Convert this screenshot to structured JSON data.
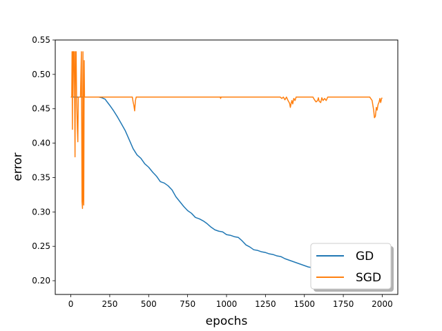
{
  "chart_data": {
    "type": "line",
    "title": "",
    "xlabel": "epochs",
    "ylabel": "error",
    "xlim": [
      -100,
      2100
    ],
    "ylim": [
      0.18,
      0.55
    ],
    "x_ticks": [
      0,
      250,
      500,
      750,
      1000,
      1250,
      1500,
      1750,
      2000
    ],
    "y_ticks": [
      0.2,
      0.25,
      0.3,
      0.35,
      0.4,
      0.45,
      0.5,
      0.55
    ],
    "grid": false,
    "legend": {
      "position": "lower-right",
      "entries": [
        "GD",
        "SGD"
      ]
    },
    "series": [
      {
        "name": "GD",
        "color": "#1f77b4",
        "points": [
          [
            0,
            0.467
          ],
          [
            180,
            0.467
          ],
          [
            200,
            0.466
          ],
          [
            220,
            0.464
          ],
          [
            250,
            0.455
          ],
          [
            275,
            0.447
          ],
          [
            300,
            0.438
          ],
          [
            325,
            0.428
          ],
          [
            350,
            0.418
          ],
          [
            375,
            0.405
          ],
          [
            400,
            0.392
          ],
          [
            425,
            0.383
          ],
          [
            450,
            0.378
          ],
          [
            475,
            0.37
          ],
          [
            500,
            0.365
          ],
          [
            525,
            0.358
          ],
          [
            550,
            0.352
          ],
          [
            575,
            0.344
          ],
          [
            600,
            0.342
          ],
          [
            625,
            0.338
          ],
          [
            650,
            0.332
          ],
          [
            675,
            0.322
          ],
          [
            700,
            0.315
          ],
          [
            725,
            0.308
          ],
          [
            750,
            0.302
          ],
          [
            775,
            0.298
          ],
          [
            800,
            0.292
          ],
          [
            825,
            0.29
          ],
          [
            850,
            0.287
          ],
          [
            875,
            0.283
          ],
          [
            900,
            0.278
          ],
          [
            925,
            0.274
          ],
          [
            950,
            0.272
          ],
          [
            975,
            0.271
          ],
          [
            1000,
            0.267
          ],
          [
            1025,
            0.266
          ],
          [
            1050,
            0.264
          ],
          [
            1075,
            0.263
          ],
          [
            1100,
            0.258
          ],
          [
            1125,
            0.252
          ],
          [
            1150,
            0.249
          ],
          [
            1175,
            0.245
          ],
          [
            1200,
            0.244
          ],
          [
            1225,
            0.242
          ],
          [
            1250,
            0.241
          ],
          [
            1275,
            0.239
          ],
          [
            1300,
            0.238
          ],
          [
            1325,
            0.236
          ],
          [
            1350,
            0.235
          ],
          [
            1375,
            0.232
          ],
          [
            1400,
            0.23
          ],
          [
            1425,
            0.228
          ],
          [
            1450,
            0.226
          ],
          [
            1475,
            0.224
          ],
          [
            1500,
            0.222
          ],
          [
            1525,
            0.22
          ],
          [
            1550,
            0.219
          ],
          [
            1575,
            0.217
          ],
          [
            1600,
            0.214
          ],
          [
            1625,
            0.212
          ],
          [
            1650,
            0.211
          ],
          [
            1675,
            0.209
          ],
          [
            1700,
            0.207
          ],
          [
            1725,
            0.205
          ],
          [
            1750,
            0.204
          ],
          [
            1800,
            0.202
          ],
          [
            1850,
            0.2
          ],
          [
            1900,
            0.199
          ],
          [
            1950,
            0.198
          ],
          [
            2000,
            0.197
          ]
        ]
      },
      {
        "name": "SGD",
        "color": "#ff7f0e",
        "points": [
          [
            0,
            0.467
          ],
          [
            6,
            0.467
          ],
          [
            8,
            0.533
          ],
          [
            10,
            0.42
          ],
          [
            12,
            0.533
          ],
          [
            14,
            0.467
          ],
          [
            18,
            0.533
          ],
          [
            22,
            0.533
          ],
          [
            25,
            0.45
          ],
          [
            27,
            0.38
          ],
          [
            30,
            0.533
          ],
          [
            34,
            0.533
          ],
          [
            37,
            0.467
          ],
          [
            42,
            0.42
          ],
          [
            45,
            0.402
          ],
          [
            48,
            0.467
          ],
          [
            62,
            0.467
          ],
          [
            68,
            0.533
          ],
          [
            72,
            0.315
          ],
          [
            75,
            0.305
          ],
          [
            78,
            0.533
          ],
          [
            80,
            0.33
          ],
          [
            83,
            0.31
          ],
          [
            86,
            0.52
          ],
          [
            88,
            0.467
          ],
          [
            395,
            0.467
          ],
          [
            400,
            0.46
          ],
          [
            405,
            0.455
          ],
          [
            410,
            0.447
          ],
          [
            415,
            0.462
          ],
          [
            420,
            0.467
          ],
          [
            960,
            0.467
          ],
          [
            962,
            0.465
          ],
          [
            965,
            0.467
          ],
          [
            1345,
            0.467
          ],
          [
            1355,
            0.465
          ],
          [
            1365,
            0.467
          ],
          [
            1375,
            0.463
          ],
          [
            1385,
            0.467
          ],
          [
            1395,
            0.462
          ],
          [
            1405,
            0.458
          ],
          [
            1410,
            0.452
          ],
          [
            1415,
            0.458
          ],
          [
            1420,
            0.462
          ],
          [
            1425,
            0.457
          ],
          [
            1432,
            0.465
          ],
          [
            1440,
            0.462
          ],
          [
            1447,
            0.467
          ],
          [
            1555,
            0.467
          ],
          [
            1565,
            0.463
          ],
          [
            1575,
            0.46
          ],
          [
            1585,
            0.462
          ],
          [
            1590,
            0.466
          ],
          [
            1595,
            0.461
          ],
          [
            1605,
            0.459
          ],
          [
            1612,
            0.466
          ],
          [
            1620,
            0.462
          ],
          [
            1630,
            0.465
          ],
          [
            1640,
            0.462
          ],
          [
            1650,
            0.467
          ],
          [
            1920,
            0.467
          ],
          [
            1935,
            0.462
          ],
          [
            1945,
            0.448
          ],
          [
            1950,
            0.437
          ],
          [
            1956,
            0.439
          ],
          [
            1962,
            0.452
          ],
          [
            1967,
            0.448
          ],
          [
            1973,
            0.456
          ],
          [
            1980,
            0.46
          ],
          [
            1985,
            0.465
          ],
          [
            1990,
            0.459
          ],
          [
            1996,
            0.465
          ],
          [
            2000,
            0.466
          ]
        ]
      }
    ]
  }
}
